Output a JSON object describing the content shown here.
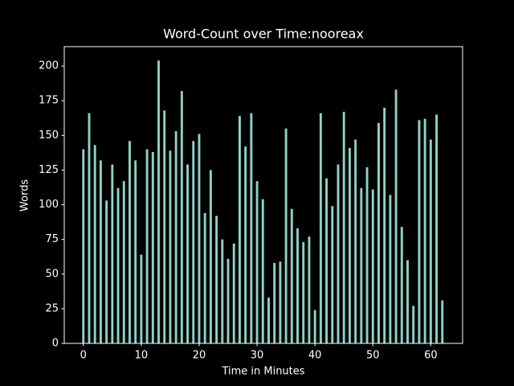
{
  "chart_data": {
    "type": "bar",
    "title": "Word-Count over Time:nooreax",
    "xlabel": "Time in Minutes",
    "ylabel": "Words",
    "x": [
      0,
      1,
      2,
      3,
      4,
      5,
      6,
      7,
      8,
      9,
      10,
      11,
      12,
      13,
      14,
      15,
      16,
      17,
      18,
      19,
      20,
      21,
      22,
      23,
      24,
      25,
      26,
      27,
      28,
      29,
      30,
      31,
      32,
      33,
      34,
      35,
      36,
      37,
      38,
      39,
      40,
      41,
      42,
      43,
      44,
      45,
      46,
      47,
      48,
      49,
      50,
      51,
      52,
      53,
      54,
      55,
      56,
      57,
      58,
      59,
      60,
      61,
      62
    ],
    "values": [
      140,
      166,
      143,
      132,
      103,
      129,
      112,
      117,
      146,
      132,
      64,
      140,
      138,
      204,
      168,
      139,
      153,
      182,
      129,
      146,
      151,
      94,
      125,
      92,
      75,
      61,
      72,
      164,
      142,
      166,
      117,
      104,
      33,
      58,
      59,
      155,
      97,
      83,
      73,
      77,
      24,
      166,
      119,
      99,
      129,
      167,
      141,
      147,
      112,
      127,
      111,
      159,
      170,
      107,
      183,
      84,
      60,
      27,
      161,
      162,
      147,
      165,
      31
    ],
    "color": "#8dd3c7",
    "xlim": [
      -3.3,
      65.5
    ],
    "xticks": [
      0,
      10,
      20,
      30,
      40,
      50,
      60
    ],
    "ylim": [
      0,
      214
    ],
    "yticks": [
      0,
      25,
      50,
      75,
      100,
      125,
      150,
      175,
      200
    ]
  }
}
